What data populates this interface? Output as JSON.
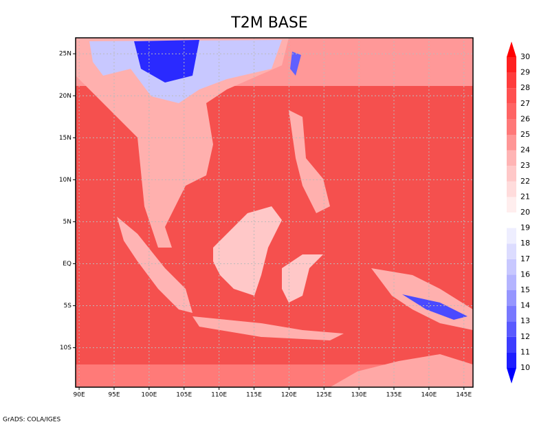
{
  "title": "T2M BASE",
  "footer": "GrADS: COLA/IGES",
  "map": {
    "xlim": [
      89.5,
      146.3
    ],
    "ylim": [
      -14.7,
      26.9
    ],
    "xticks": [
      {
        "value": 90,
        "label": "90E"
      },
      {
        "value": 95,
        "label": "95E"
      },
      {
        "value": 100,
        "label": "100E"
      },
      {
        "value": 105,
        "label": "105E"
      },
      {
        "value": 110,
        "label": "110E"
      },
      {
        "value": 115,
        "label": "115E"
      },
      {
        "value": 120,
        "label": "120E"
      },
      {
        "value": 125,
        "label": "125E"
      },
      {
        "value": 130,
        "label": "130E"
      },
      {
        "value": 135,
        "label": "135E"
      },
      {
        "value": 140,
        "label": "140E"
      },
      {
        "value": 145,
        "label": "145E"
      }
    ],
    "yticks": [
      {
        "value": 25,
        "label": "25N"
      },
      {
        "value": 20,
        "label": "20N"
      },
      {
        "value": 15,
        "label": "15N"
      },
      {
        "value": 10,
        "label": "10N"
      },
      {
        "value": 5,
        "label": "5N"
      },
      {
        "value": 0,
        "label": "EQ"
      },
      {
        "value": -5,
        "label": "5S"
      },
      {
        "value": -10,
        "label": "10S"
      }
    ],
    "grid": true
  },
  "colorbar": {
    "levels": [
      10,
      11,
      12,
      13,
      14,
      15,
      16,
      17,
      18,
      19,
      20,
      21,
      22,
      23,
      24,
      25,
      26,
      27,
      28,
      29,
      30
    ],
    "colors": [
      "#0000ff",
      "#1e1eff",
      "#3c3cff",
      "#5a5aff",
      "#7878ff",
      "#9696ff",
      "#b4b4ff",
      "#c8c8ff",
      "#dcdcff",
      "#eeeeff",
      "#ffffff",
      "#ffeeee",
      "#ffdcdc",
      "#ffc8c8",
      "#ffb4b4",
      "#ff9696",
      "#ff7878",
      "#ff6464",
      "#ff5050",
      "#ff3c3c",
      "#ff2020",
      "#ff0000"
    ]
  }
}
